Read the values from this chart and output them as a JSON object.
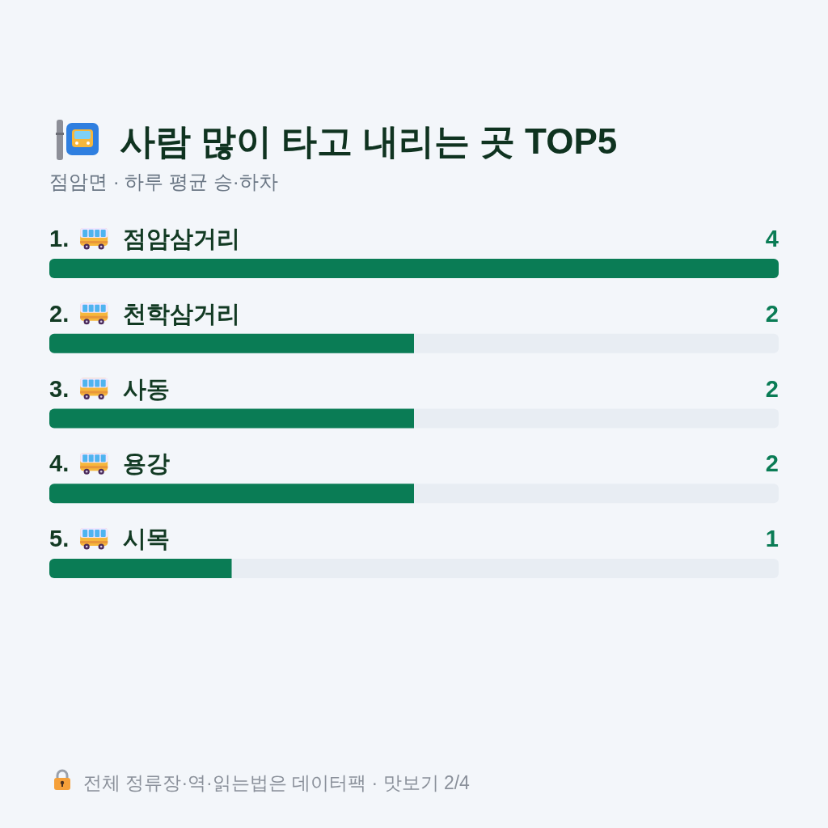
{
  "chart_data": {
    "type": "bar",
    "orientation": "horizontal",
    "title": "사람 많이 타고 내리는 곳 TOP5",
    "subtitle": "점암면 · 하루 평균 승·하차",
    "categories": [
      "1. 점암삼거리",
      "2. 천학삼거리",
      "3. 사동",
      "4. 용강",
      "5. 시목"
    ],
    "values": [
      4,
      2,
      2,
      2,
      1
    ],
    "color": "#0a7c55",
    "data_labels": true,
    "annotations": [
      "전체 정류장·역·읽는법은 데이터팩 · 맛보기 2/4"
    ]
  }
}
